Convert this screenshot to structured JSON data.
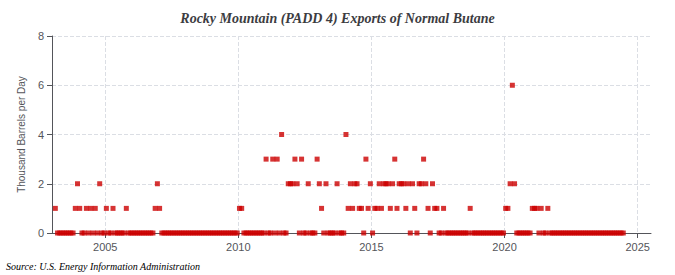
{
  "chart_data": {
    "type": "scatter",
    "title": "Rocky Mountain (PADD 4) Exports of Normal Butane",
    "ylabel": "Thousand Barrels per Day",
    "source": "Source: U.S. Energy Information Administration",
    "color": "#cc0000",
    "marker": "square",
    "grid": true,
    "xlim": [
      2003.0,
      2025.5
    ],
    "xticks": [
      2005,
      2010,
      2015,
      2020,
      2025
    ],
    "ylim": [
      0,
      8
    ],
    "yticks": [
      0,
      2,
      4,
      6,
      8
    ],
    "x": [
      2003.125,
      2003.2083,
      2003.2917,
      2003.375,
      2003.4583,
      2003.5417,
      2003.625,
      2003.7083,
      2003.7917,
      2003.875,
      2003.9583,
      2004.0417,
      2004.125,
      2004.2083,
      2004.2917,
      2004.375,
      2004.4583,
      2004.5417,
      2004.625,
      2004.7083,
      2004.7917,
      2004.875,
      2004.9583,
      2005.0417,
      2005.125,
      2005.2083,
      2005.2917,
      2005.375,
      2005.4583,
      2005.5417,
      2005.625,
      2005.7083,
      2005.7917,
      2005.875,
      2005.9583,
      2006.0417,
      2006.125,
      2006.2083,
      2006.2917,
      2006.375,
      2006.4583,
      2006.5417,
      2006.625,
      2006.7083,
      2006.7917,
      2006.875,
      2006.9583,
      2007.0417,
      2007.125,
      2007.2083,
      2007.2917,
      2007.375,
      2007.4583,
      2007.5417,
      2007.625,
      2007.7083,
      2007.7917,
      2007.875,
      2007.9583,
      2008.0417,
      2008.125,
      2008.2083,
      2008.2917,
      2008.375,
      2008.4583,
      2008.5417,
      2008.625,
      2008.7083,
      2008.7917,
      2008.875,
      2008.9583,
      2009.0417,
      2009.125,
      2009.2083,
      2009.2917,
      2009.375,
      2009.4583,
      2009.5417,
      2009.625,
      2009.7083,
      2009.7917,
      2009.875,
      2009.9583,
      2010.0417,
      2010.125,
      2010.2083,
      2010.2917,
      2010.375,
      2010.4583,
      2010.5417,
      2010.625,
      2010.7083,
      2010.7917,
      2010.875,
      2010.9583,
      2011.0417,
      2011.125,
      2011.2083,
      2011.2917,
      2011.375,
      2011.4583,
      2011.5417,
      2011.625,
      2011.7083,
      2011.7917,
      2011.875,
      2011.9583,
      2012.0417,
      2012.125,
      2012.2083,
      2012.2917,
      2012.375,
      2012.4583,
      2012.5417,
      2012.625,
      2012.7083,
      2012.7917,
      2012.875,
      2012.9583,
      2013.0417,
      2013.125,
      2013.2083,
      2013.2917,
      2013.375,
      2013.4583,
      2013.5417,
      2013.625,
      2013.7083,
      2013.7917,
      2013.875,
      2013.9583,
      2014.0417,
      2014.125,
      2014.2083,
      2014.2917,
      2014.375,
      2014.4583,
      2014.5417,
      2014.625,
      2014.7083,
      2014.7917,
      2014.875,
      2014.9583,
      2015.0417,
      2015.125,
      2015.2083,
      2015.2917,
      2015.375,
      2015.4583,
      2015.5417,
      2015.625,
      2015.7083,
      2015.7917,
      2015.875,
      2015.9583,
      2016.0417,
      2016.125,
      2016.2083,
      2016.2917,
      2016.375,
      2016.4583,
      2016.5417,
      2016.625,
      2016.7083,
      2016.7917,
      2016.875,
      2016.9583,
      2017.0417,
      2017.125,
      2017.2083,
      2017.2917,
      2017.375,
      2017.4583,
      2017.5417,
      2017.625,
      2017.7083,
      2017.7917,
      2017.875,
      2017.9583,
      2018.0417,
      2018.125,
      2018.2083,
      2018.2917,
      2018.375,
      2018.4583,
      2018.5417,
      2018.625,
      2018.7083,
      2018.7917,
      2018.875,
      2018.9583,
      2019.0417,
      2019.125,
      2019.2083,
      2019.2917,
      2019.375,
      2019.4583,
      2019.5417,
      2019.625,
      2019.7083,
      2019.7917,
      2019.875,
      2019.9583,
      2020.0417,
      2020.125,
      2020.2083,
      2020.2917,
      2020.375,
      2020.4583,
      2020.5417,
      2020.625,
      2020.7083,
      2020.7917,
      2020.875,
      2020.9583,
      2021.0417,
      2021.125,
      2021.2083,
      2021.2917,
      2021.375,
      2021.4583,
      2021.5417,
      2021.625,
      2021.7083,
      2021.7917,
      2021.875,
      2021.9583,
      2022.0417,
      2022.125,
      2022.2083,
      2022.2917,
      2022.375,
      2022.4583,
      2022.5417,
      2022.625,
      2022.7083,
      2022.7917,
      2022.875,
      2022.9583,
      2023.0417,
      2023.125,
      2023.2083,
      2023.2917,
      2023.375,
      2023.4583,
      2023.5417,
      2023.625,
      2023.7083,
      2023.7917,
      2023.875,
      2023.9583,
      2024.0417,
      2024.125,
      2024.2083,
      2024.2917,
      2024.375,
      2024.4583
    ],
    "values": [
      1,
      0,
      0,
      0,
      0,
      0,
      0,
      0,
      0,
      1,
      2,
      1,
      0,
      0,
      1,
      0,
      1,
      0,
      1,
      0,
      2,
      0,
      0,
      1,
      0,
      0,
      1,
      0,
      0,
      0,
      0,
      0,
      1,
      0,
      0,
      0,
      0,
      0,
      0,
      0,
      0,
      0,
      0,
      0,
      0,
      1,
      2,
      1,
      0,
      0,
      0,
      0,
      0,
      0,
      0,
      0,
      0,
      0,
      0,
      0,
      0,
      0,
      0,
      0,
      0,
      0,
      0,
      0,
      0,
      0,
      0,
      0,
      0,
      0,
      0,
      0,
      0,
      0,
      0,
      0,
      0,
      0,
      0,
      1,
      1,
      0,
      0,
      0,
      0,
      0,
      0,
      0,
      0,
      0,
      0,
      3,
      0,
      0,
      3,
      0,
      3,
      0,
      4,
      0,
      0,
      2,
      2,
      2,
      3,
      2,
      0,
      3,
      0,
      0,
      2,
      0,
      0,
      0,
      3,
      2,
      1,
      0,
      2,
      0,
      0,
      0,
      0,
      2,
      0,
      0,
      0,
      4,
      1,
      2,
      1,
      2,
      2,
      1,
      1,
      0,
      3,
      1,
      2,
      0,
      1,
      1,
      2,
      1,
      2,
      2,
      2,
      1,
      2,
      3,
      1,
      2,
      2,
      2,
      1,
      2,
      0,
      2,
      1,
      0,
      2,
      2,
      3,
      2,
      1,
      0,
      2,
      1,
      1,
      0,
      0,
      1,
      0,
      0,
      0,
      0,
      0,
      0,
      0,
      0,
      0,
      0,
      0,
      1,
      0,
      0,
      0,
      0,
      0,
      0,
      0,
      0,
      0,
      0,
      0,
      0,
      0,
      0,
      0,
      1,
      1,
      2,
      6,
      2,
      0,
      0,
      0,
      0,
      0,
      0,
      0,
      1,
      1,
      1,
      0,
      1,
      0,
      0,
      1,
      0,
      0,
      0,
      0,
      0,
      0,
      0,
      0,
      0,
      0,
      0,
      0,
      0,
      0,
      0,
      0,
      0,
      0,
      0,
      0,
      0,
      0,
      0,
      0,
      0,
      0,
      0,
      0,
      0,
      0,
      0,
      0,
      0,
      0
    ]
  }
}
